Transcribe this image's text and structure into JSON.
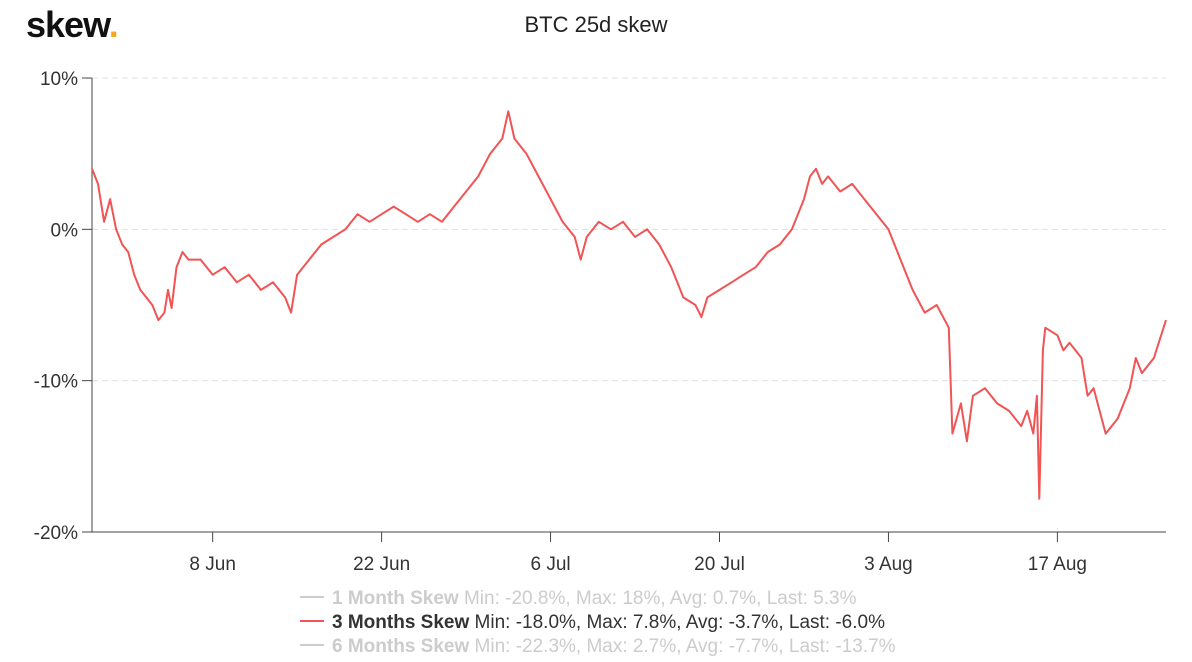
{
  "logo": {
    "text": "skew",
    "dot": "."
  },
  "colors": {
    "accent": "#f5a623",
    "series": "#f05454",
    "inactive": "#cccccc",
    "grid": "#e0e0e0"
  },
  "legend": [
    {
      "name": "1 Month Skew",
      "stats": "Min: -20.8%, Max: 18%, Avg: 0.7%, Last: 5.3%",
      "active": false
    },
    {
      "name": "3 Months Skew",
      "stats": "Min: -18.0%, Max: 7.8%, Avg: -3.7%, Last: -6.0%",
      "active": true
    },
    {
      "name": "6 Months Skew",
      "stats": "Min: -22.3%, Max: 2.7%, Avg: -7.7%, Last: -13.7%",
      "active": false
    }
  ],
  "chart_data": {
    "type": "line",
    "title": "BTC 25d skew",
    "xlabel": "",
    "ylabel": "",
    "x_ticks": [
      "8 Jun",
      "22 Jun",
      "6 Jul",
      "20 Jul",
      "3 Aug",
      "17 Aug"
    ],
    "y_ticks": [
      "10%",
      "0%",
      "-10%",
      "-20%"
    ],
    "y_tick_values": [
      10,
      0,
      -10,
      -20
    ],
    "ylim": [
      -20,
      10
    ],
    "xlim_days": [
      0,
      89
    ],
    "x_tick_days": [
      10,
      24,
      38,
      52,
      66,
      80
    ],
    "grid": true,
    "series": [
      {
        "name": "3 Months Skew",
        "points": [
          [
            0,
            4.0
          ],
          [
            0.5,
            3.0
          ],
          [
            1,
            0.5
          ],
          [
            1.5,
            2.0
          ],
          [
            2,
            0.0
          ],
          [
            2.5,
            -1.0
          ],
          [
            3,
            -1.5
          ],
          [
            3.5,
            -3.0
          ],
          [
            4,
            -4.0
          ],
          [
            4.5,
            -4.5
          ],
          [
            5,
            -5.0
          ],
          [
            5.5,
            -6.0
          ],
          [
            6,
            -5.5
          ],
          [
            6.3,
            -4.0
          ],
          [
            6.6,
            -5.2
          ],
          [
            7,
            -2.5
          ],
          [
            7.5,
            -1.5
          ],
          [
            8,
            -2.0
          ],
          [
            9,
            -2.0
          ],
          [
            10,
            -3.0
          ],
          [
            11,
            -2.5
          ],
          [
            12,
            -3.5
          ],
          [
            13,
            -3.0
          ],
          [
            14,
            -4.0
          ],
          [
            15,
            -3.5
          ],
          [
            16,
            -4.5
          ],
          [
            16.5,
            -5.5
          ],
          [
            17,
            -3.0
          ],
          [
            18,
            -2.0
          ],
          [
            19,
            -1.0
          ],
          [
            20,
            -0.5
          ],
          [
            21,
            0.0
          ],
          [
            22,
            1.0
          ],
          [
            23,
            0.5
          ],
          [
            24,
            1.0
          ],
          [
            25,
            1.5
          ],
          [
            26,
            1.0
          ],
          [
            27,
            0.5
          ],
          [
            28,
            1.0
          ],
          [
            29,
            0.5
          ],
          [
            30,
            1.5
          ],
          [
            31,
            2.5
          ],
          [
            32,
            3.5
          ],
          [
            33,
            5.0
          ],
          [
            34,
            6.0
          ],
          [
            34.5,
            7.8
          ],
          [
            35,
            6.0
          ],
          [
            36,
            5.0
          ],
          [
            37,
            3.5
          ],
          [
            38,
            2.0
          ],
          [
            39,
            0.5
          ],
          [
            40,
            -0.5
          ],
          [
            40.5,
            -2.0
          ],
          [
            41,
            -0.5
          ],
          [
            42,
            0.5
          ],
          [
            43,
            0.0
          ],
          [
            44,
            0.5
          ],
          [
            45,
            -0.5
          ],
          [
            46,
            0.0
          ],
          [
            47,
            -1.0
          ],
          [
            48,
            -2.5
          ],
          [
            48.5,
            -3.5
          ],
          [
            49,
            -4.5
          ],
          [
            50,
            -5.0
          ],
          [
            50.5,
            -5.8
          ],
          [
            51,
            -4.5
          ],
          [
            52,
            -4.0
          ],
          [
            53,
            -3.5
          ],
          [
            54,
            -3.0
          ],
          [
            55,
            -2.5
          ],
          [
            56,
            -1.5
          ],
          [
            57,
            -1.0
          ],
          [
            58,
            0.0
          ],
          [
            59,
            2.0
          ],
          [
            59.5,
            3.5
          ],
          [
            60,
            4.0
          ],
          [
            60.5,
            3.0
          ],
          [
            61,
            3.5
          ],
          [
            62,
            2.5
          ],
          [
            63,
            3.0
          ],
          [
            64,
            2.0
          ],
          [
            65,
            1.0
          ],
          [
            66,
            0.0
          ],
          [
            67,
            -2.0
          ],
          [
            68,
            -4.0
          ],
          [
            69,
            -5.5
          ],
          [
            70,
            -5.0
          ],
          [
            71,
            -6.5
          ],
          [
            71.3,
            -13.5
          ],
          [
            72,
            -11.5
          ],
          [
            72.5,
            -14.0
          ],
          [
            73,
            -11.0
          ],
          [
            74,
            -10.5
          ],
          [
            75,
            -11.5
          ],
          [
            76,
            -12.0
          ],
          [
            77,
            -13.0
          ],
          [
            77.5,
            -12.0
          ],
          [
            78,
            -13.5
          ],
          [
            78.3,
            -11.0
          ],
          [
            78.5,
            -17.8
          ],
          [
            78.8,
            -8.0
          ],
          [
            79,
            -6.5
          ],
          [
            80,
            -7.0
          ],
          [
            80.5,
            -8.0
          ],
          [
            81,
            -7.5
          ],
          [
            82,
            -8.5
          ],
          [
            82.5,
            -11.0
          ],
          [
            83,
            -10.5
          ],
          [
            84,
            -13.5
          ],
          [
            84.5,
            -13.0
          ],
          [
            85,
            -12.5
          ],
          [
            86,
            -10.5
          ],
          [
            86.5,
            -8.5
          ],
          [
            87,
            -9.5
          ],
          [
            88,
            -8.5
          ],
          [
            89,
            -6.0
          ]
        ]
      }
    ]
  }
}
